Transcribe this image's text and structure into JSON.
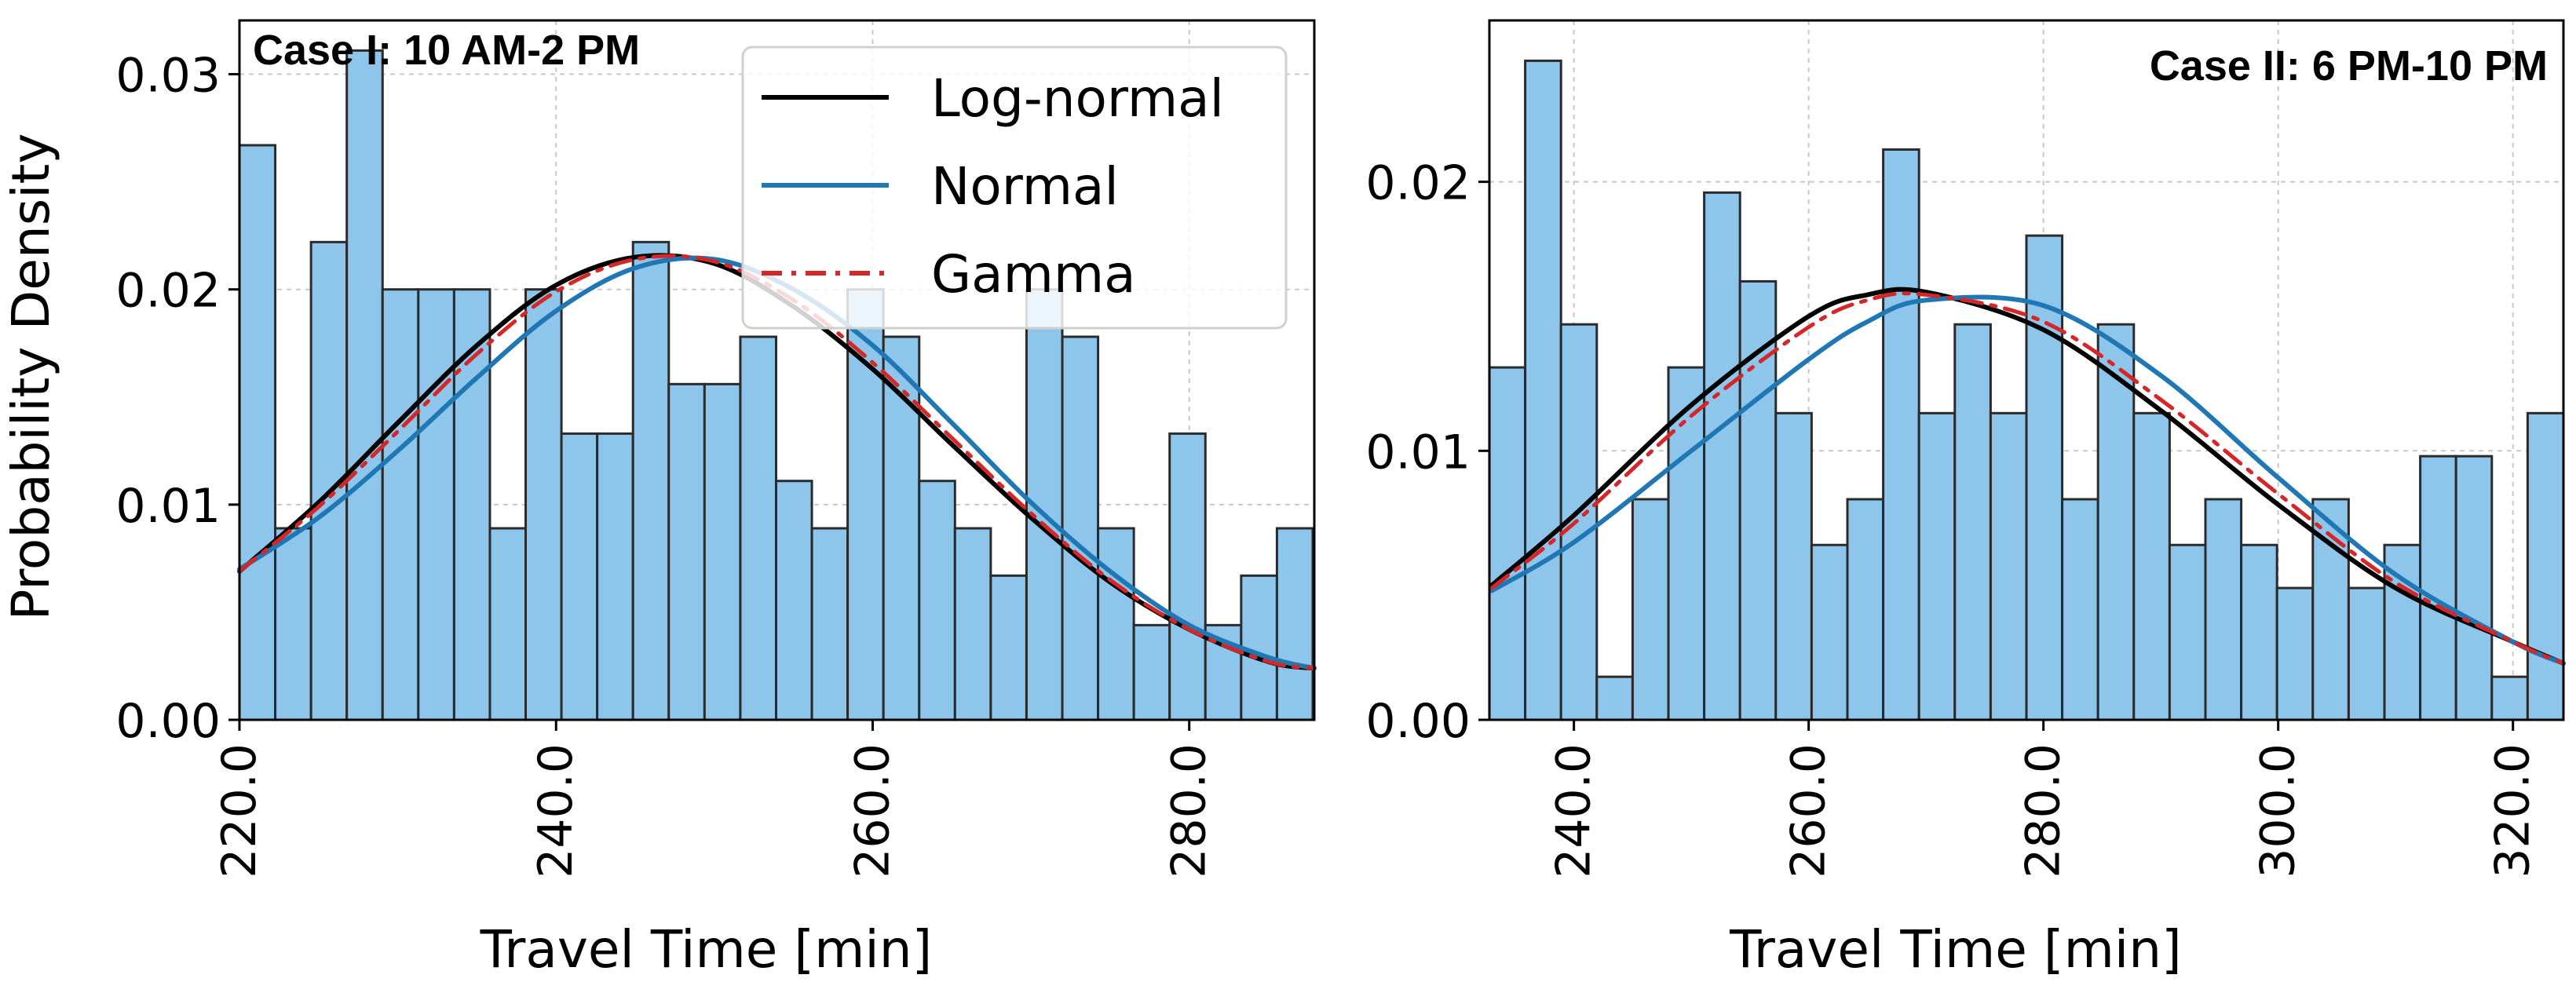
{
  "figure": {
    "ylabel": "Probability Density",
    "legend": [
      {
        "label": "Log-normal",
        "color": "#000000",
        "dash": "solid"
      },
      {
        "label": "Normal",
        "color": "#1f77b4",
        "dash": "solid"
      },
      {
        "label": "Gamma",
        "color": "#d62728",
        "dash": "dashdot"
      }
    ]
  },
  "chart_data": [
    {
      "type": "bar",
      "title": "Case I: 10 AM-2 PM",
      "xlabel": "Travel Time [min]",
      "ylabel": "Probability Density",
      "xlim": [
        220,
        287.9
      ],
      "ylim": [
        0,
        0.0325
      ],
      "xticks": [
        220,
        240,
        260,
        280
      ],
      "xtick_labels": [
        "220.0",
        "240.0",
        "260.0",
        "280.0"
      ],
      "yticks": [
        0,
        0.01,
        0.02,
        0.03
      ],
      "ytick_labels": [
        "0.00",
        "0.01",
        "0.02",
        "0.03"
      ],
      "bin_start": 220,
      "bin_width": 2.26,
      "bar_color": "#8ec5ea",
      "values": [
        0.0267,
        0.0089,
        0.0222,
        0.0311,
        0.02,
        0.02,
        0.02,
        0.0089,
        0.02,
        0.0133,
        0.0133,
        0.0222,
        0.0156,
        0.0156,
        0.0178,
        0.0111,
        0.0089,
        0.02,
        0.0178,
        0.0111,
        0.0089,
        0.0067,
        0.02,
        0.0178,
        0.0089,
        0.0044,
        0.0133,
        0.0044,
        0.0067,
        0.0089
      ],
      "fits": [
        {
          "name": "Log-normal",
          "x": [
            220,
            225,
            230,
            235,
            240,
            245,
            250,
            255,
            260,
            265,
            270,
            275,
            280,
            285,
            288
          ],
          "y": [
            0.0069,
            0.0101,
            0.0138,
            0.0174,
            0.0202,
            0.0215,
            0.0212,
            0.0192,
            0.0163,
            0.0128,
            0.0094,
            0.0064,
            0.0042,
            0.0027,
            0.0024
          ]
        },
        {
          "name": "Normal",
          "x": [
            220,
            225,
            230,
            235,
            240,
            245,
            250,
            255,
            260,
            265,
            270,
            275,
            280,
            285,
            288
          ],
          "y": [
            0.007,
            0.0094,
            0.0125,
            0.0159,
            0.019,
            0.021,
            0.0214,
            0.02,
            0.0174,
            0.0138,
            0.0101,
            0.0069,
            0.0044,
            0.0029,
            0.0024
          ]
        },
        {
          "name": "Gamma",
          "x": [
            220,
            225,
            230,
            235,
            240,
            245,
            250,
            255,
            260,
            265,
            270,
            275,
            280,
            285,
            288
          ],
          "y": [
            0.0069,
            0.0099,
            0.0134,
            0.017,
            0.0199,
            0.0214,
            0.0213,
            0.0195,
            0.0166,
            0.0131,
            0.0096,
            0.0065,
            0.0042,
            0.0027,
            0.0024
          ]
        }
      ]
    },
    {
      "type": "bar",
      "title": "Case II: 6 PM-10 PM",
      "xlabel": "Travel Time [min]",
      "ylabel": "",
      "xlim": [
        232.8,
        324.3
      ],
      "ylim": [
        0,
        0.026
      ],
      "xticks": [
        240,
        260,
        280,
        300,
        320
      ],
      "xtick_labels": [
        "240.0",
        "260.0",
        "280.0",
        "300.0",
        "320.0"
      ],
      "yticks": [
        0,
        0.01,
        0.02
      ],
      "ytick_labels": [
        "0.00",
        "0.01",
        "0.02"
      ],
      "bin_start": 232.8,
      "bin_width": 3.05,
      "bar_color": "#8ec5ea",
      "values": [
        0.0131,
        0.0245,
        0.0147,
        0.0016,
        0.0082,
        0.0131,
        0.0196,
        0.0163,
        0.0114,
        0.0065,
        0.0082,
        0.0212,
        0.0114,
        0.0147,
        0.0114,
        0.018,
        0.0082,
        0.0147,
        0.0114,
        0.0065,
        0.0082,
        0.0065,
        0.0049,
        0.0082,
        0.0049,
        0.0065,
        0.0098,
        0.0098,
        0.0016,
        0.0114
      ],
      "fits": [
        {
          "name": "Log-normal",
          "x": [
            233,
            240,
            250,
            260,
            265,
            270,
            280,
            290,
            300,
            310,
            320,
            325
          ],
          "y": [
            0.005,
            0.0076,
            0.0117,
            0.015,
            0.0158,
            0.0159,
            0.0145,
            0.0115,
            0.008,
            0.0049,
            0.0029,
            0.0021
          ]
        },
        {
          "name": "Normal",
          "x": [
            233,
            240,
            250,
            260,
            265,
            270,
            280,
            290,
            300,
            310,
            320,
            325
          ],
          "y": [
            0.0048,
            0.0066,
            0.01,
            0.0134,
            0.0148,
            0.0156,
            0.0154,
            0.0128,
            0.009,
            0.0054,
            0.0029,
            0.0021
          ]
        },
        {
          "name": "Gamma",
          "x": [
            233,
            240,
            250,
            260,
            265,
            270,
            280,
            290,
            300,
            310,
            320,
            325
          ],
          "y": [
            0.0049,
            0.0073,
            0.0113,
            0.0146,
            0.0156,
            0.0158,
            0.0148,
            0.0119,
            0.0084,
            0.0051,
            0.0029,
            0.0021
          ]
        }
      ]
    }
  ]
}
